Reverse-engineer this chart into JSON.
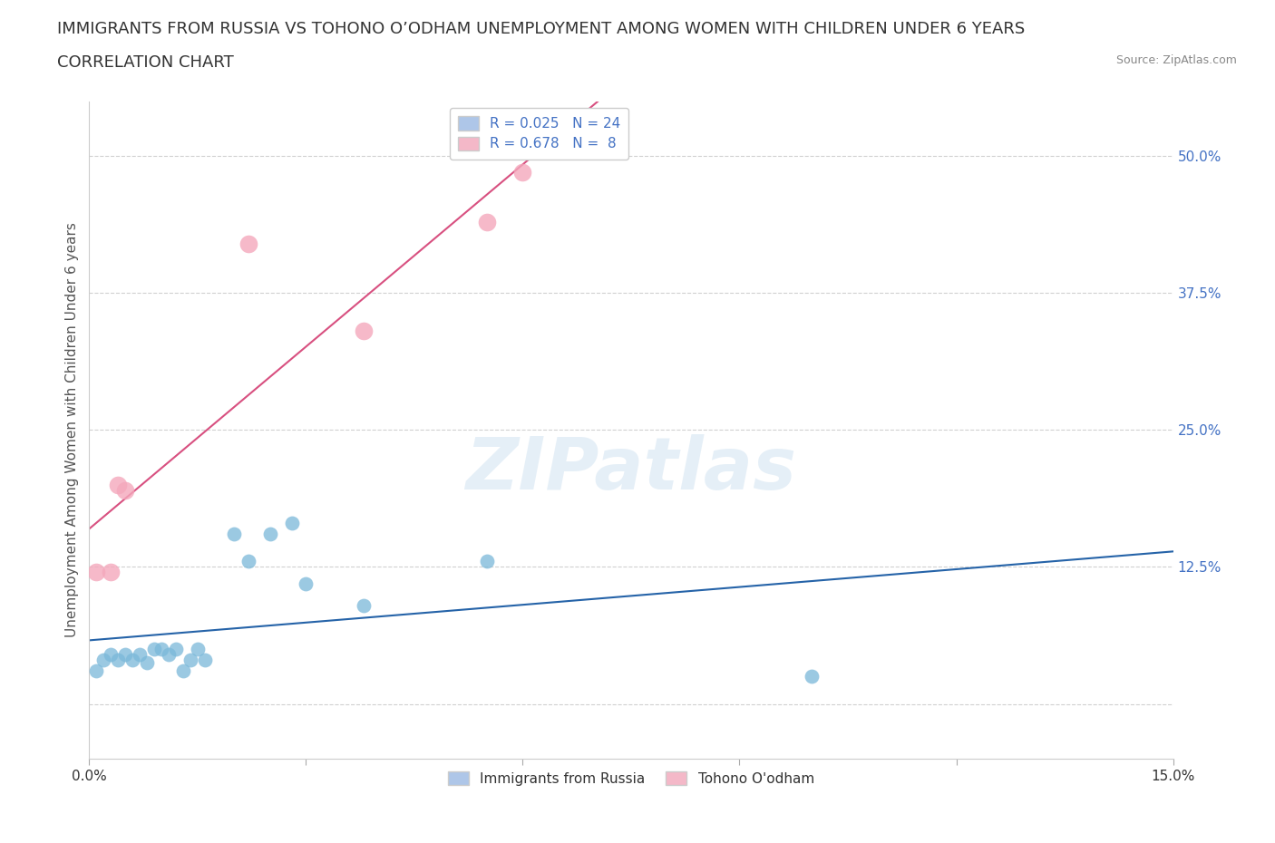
{
  "title_line1": "IMMIGRANTS FROM RUSSIA VS TOHONO O’ODHAM UNEMPLOYMENT AMONG WOMEN WITH CHILDREN UNDER 6 YEARS",
  "title_line2": "CORRELATION CHART",
  "source": "Source: ZipAtlas.com",
  "ylabel": "Unemployment Among Women with Children Under 6 years",
  "watermark": "ZIPatlas",
  "xlim": [
    0.0,
    0.15
  ],
  "ylim": [
    -0.05,
    0.55
  ],
  "yticks": [
    0.0,
    0.125,
    0.25,
    0.375,
    0.5
  ],
  "ytick_labels": [
    "",
    "12.5%",
    "25.0%",
    "37.5%",
    "50.0%"
  ],
  "xticks": [
    0.0,
    0.03,
    0.06,
    0.09,
    0.12,
    0.15
  ],
  "xtick_labels": [
    "0.0%",
    "",
    "",
    "",
    "",
    "15.0%"
  ],
  "legend_entry1": "R = 0.025   N = 24",
  "legend_entry2": "R = 0.678   N =  8",
  "legend_color1": "#aec6e8",
  "legend_color2": "#f4b8c8",
  "color_russia": "#7ab8d9",
  "color_tohono": "#f4a8bc",
  "line_color_russia": "#2563a8",
  "line_color_tohono": "#d85080",
  "russia_x": [
    0.001,
    0.002,
    0.003,
    0.004,
    0.005,
    0.006,
    0.007,
    0.008,
    0.009,
    0.01,
    0.011,
    0.012,
    0.013,
    0.014,
    0.015,
    0.016,
    0.02,
    0.022,
    0.025,
    0.028,
    0.03,
    0.038,
    0.055,
    0.1
  ],
  "russia_y": [
    0.03,
    0.04,
    0.045,
    0.04,
    0.045,
    0.04,
    0.045,
    0.038,
    0.05,
    0.05,
    0.045,
    0.05,
    0.03,
    0.04,
    0.05,
    0.04,
    0.155,
    0.13,
    0.155,
    0.165,
    0.11,
    0.09,
    0.13,
    0.025
  ],
  "tohono_x": [
    0.001,
    0.003,
    0.004,
    0.005,
    0.022,
    0.038,
    0.055,
    0.06
  ],
  "tohono_y": [
    0.12,
    0.12,
    0.2,
    0.195,
    0.42,
    0.34,
    0.44,
    0.485
  ],
  "russia_marker_size": 130,
  "tohono_marker_size": 200,
  "background_color": "#ffffff",
  "grid_color": "#d0d0d0",
  "title_fontsize": 13,
  "label_fontsize": 11,
  "tick_fontsize": 11,
  "legend_text_color": "#4472c4",
  "ytick_color": "#4472c4",
  "xtick_color": "#333333"
}
